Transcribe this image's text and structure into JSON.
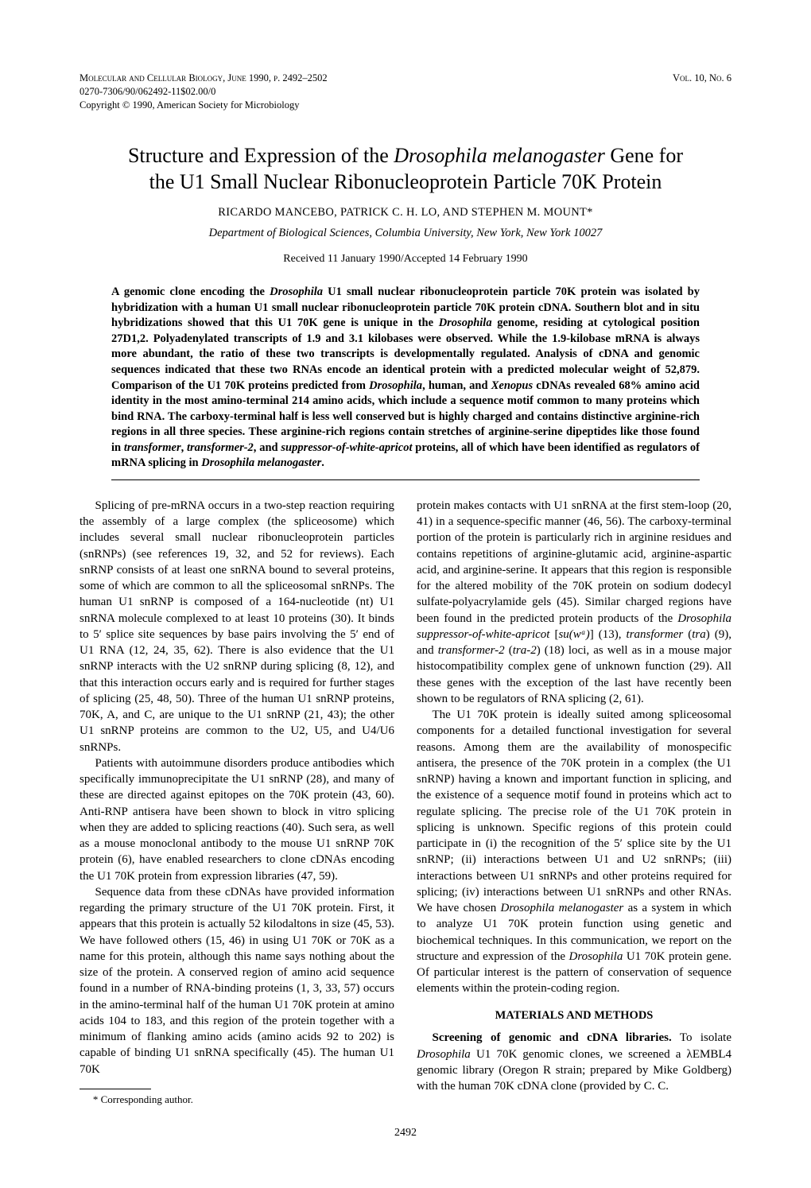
{
  "header": {
    "journal_line": "Molecular and Cellular Biology, June 1990, p. 2492–2502",
    "volume": "Vol. 10, No. 6",
    "issn_line": "0270-7306/90/062492-11$02.00/0",
    "copyright_line": "Copyright © 1990, American Society for Microbiology"
  },
  "title": {
    "line1_pre": "Structure and Expression of the ",
    "line1_species": "Drosophila melanogaster",
    "line1_post": " Gene for",
    "line2": "the U1 Small Nuclear Ribonucleoprotein Particle 70K Protein"
  },
  "authors": "RICARDO MANCEBO, PATRICK C. H. LO, AND STEPHEN M. MOUNT*",
  "affiliation": "Department of Biological Sciences, Columbia University, New York, New York 10027",
  "dates": "Received 11 January 1990/Accepted 14 February 1990",
  "abstract": {
    "a1": "A genomic clone encoding the ",
    "a2_species": "Drosophila",
    "a3": " U1 small nuclear ribonucleoprotein particle 70K protein was isolated by hybridization with a human U1 small nuclear ribonucleoprotein particle 70K protein cDNA. Southern blot and in situ hybridizations showed that this U1 70K gene is unique in the ",
    "a4_species": "Drosophila",
    "a5": " genome, residing at cytological position 27D1,2. Polyadenylated transcripts of 1.9 and 3.1 kilobases were observed. While the 1.9-kilobase mRNA is always more abundant, the ratio of these two transcripts is developmentally regulated. Analysis of cDNA and genomic sequences indicated that these two RNAs encode an identical protein with a predicted molecular weight of 52,879. Comparison of the U1 70K proteins predicted from ",
    "a6_species": "Drosophila",
    "a7": ", human, and ",
    "a8_species": "Xenopus",
    "a9": " cDNAs revealed 68% amino acid identity in the most amino-terminal 214 amino acids, which include a sequence motif common to many proteins which bind RNA. The carboxy-terminal half is less well conserved but is highly charged and contains distinctive arginine-rich regions in all three species. These arginine-rich regions contain stretches of arginine-serine dipeptides like those found in ",
    "a10_species": "transformer",
    "a11": ", ",
    "a12_species": "transformer-2",
    "a13": ", and ",
    "a14_species": "suppressor-of-white-apricot",
    "a15": " proteins, all of which have been identified as regulators of mRNA splicing in ",
    "a16_species": "Drosophila melanogaster",
    "a17": "."
  },
  "left": {
    "p1": "Splicing of pre-mRNA occurs in a two-step reaction requiring the assembly of a large complex (the spliceosome) which includes several small nuclear ribonucleoprotein particles (snRNPs) (see references 19, 32, and 52 for reviews). Each snRNP consists of at least one snRNA bound to several proteins, some of which are common to all the spliceosomal snRNPs. The human U1 snRNP is composed of a 164-nucleotide (nt) U1 snRNA molecule complexed to at least 10 proteins (30). It binds to 5′ splice site sequences by base pairs involving the 5′ end of U1 RNA (12, 24, 35, 62). There is also evidence that the U1 snRNP interacts with the U2 snRNP during splicing (8, 12), and that this interaction occurs early and is required for further stages of splicing (25, 48, 50). Three of the human U1 snRNP proteins, 70K, A, and C, are unique to the U1 snRNP (21, 43); the other U1 snRNP proteins are common to the U2, U5, and U4/U6 snRNPs.",
    "p2": "Patients with autoimmune disorders produce antibodies which specifically immunoprecipitate the U1 snRNP (28), and many of these are directed against epitopes on the 70K protein (43, 60). Anti-RNP antisera have been shown to block in vitro splicing when they are added to splicing reactions (40). Such sera, as well as a mouse monoclonal antibody to the mouse U1 snRNP 70K protein (6), have enabled researchers to clone cDNAs encoding the U1 70K protein from expression libraries (47, 59).",
    "p3": "Sequence data from these cDNAs have provided information regarding the primary structure of the U1 70K protein. First, it appears that this protein is actually 52 kilodaltons in size (45, 53). We have followed others (15, 46) in using U1 70K or 70K as a name for this protein, although this name says nothing about the size of the protein. A conserved region of amino acid sequence found in a number of RNA-binding proteins (1, 3, 33, 57) occurs in the amino-terminal half of the human U1 70K protein at amino acids 104 to 183, and this region of the protein together with a minimum of flanking amino acids (amino acids 92 to 202) is capable of binding U1 snRNA specifically (45). The human U1 70K",
    "footnote": "* Corresponding author."
  },
  "right": {
    "p1a": "protein makes contacts with U1 snRNA at the first stem-loop (20, 41) in a sequence-specific manner (46, 56). The carboxy-terminal portion of the protein is particularly rich in arginine residues and contains repetitions of arginine-glutamic acid, arginine-aspartic acid, and arginine-serine. It appears that this region is responsible for the altered mobility of the 70K protein on sodium dodecyl sulfate-polyacrylamide gels (45). Similar charged regions have been found in the predicted protein products of the ",
    "p1b_species": "Drosophila suppressor-of-white-apricot",
    "p1c": " [",
    "p1d_species": "su(wᵃ)",
    "p1e": "] (13), ",
    "p1f_species": "transformer",
    "p1g": " (",
    "p1h_species": "tra",
    "p1i": ") (9), and ",
    "p1j_species": "transformer-2",
    "p1k": " (",
    "p1l_species": "tra-2",
    "p1m": ") (18) loci, as well as in a mouse major histocompatibility complex gene of unknown function (29). All these genes with the exception of the last have recently been shown to be regulators of RNA splicing (2, 61).",
    "p2a": "The U1 70K protein is ideally suited among spliceosomal components for a detailed functional investigation for several reasons. Among them are the availability of monospecific antisera, the presence of the 70K protein in a complex (the U1 snRNP) having a known and important function in splicing, and the existence of a sequence motif found in proteins which act to regulate splicing. The precise role of the U1 70K protein in splicing is unknown. Specific regions of this protein could participate in (i) the recognition of the 5′ splice site by the U1 snRNP; (ii) interactions between U1 and U2 snRNPs; (iii) interactions between U1 snRNPs and other proteins required for splicing; (iv) interactions between U1 snRNPs and other RNAs. We have chosen ",
    "p2b_species": "Drosophila melanogaster",
    "p2c": " as a system in which to analyze U1 70K protein function using genetic and biochemical techniques. In this communication, we report on the structure and expression of the ",
    "p2d_species": "Drosophila",
    "p2e": " U1 70K protein gene. Of particular interest is the pattern of conservation of sequence elements within the protein-coding region.",
    "section_head": "MATERIALS AND METHODS",
    "p3a_runin": "Screening of genomic and cDNA libraries.",
    "p3b": " To isolate ",
    "p3c_species": "Drosophila",
    "p3d": " U1 70K genomic clones, we screened a λEMBL4 genomic library (Oregon R strain; prepared by Mike Goldberg) with the human 70K cDNA clone (provided by C. C."
  },
  "pagenum": "2492"
}
